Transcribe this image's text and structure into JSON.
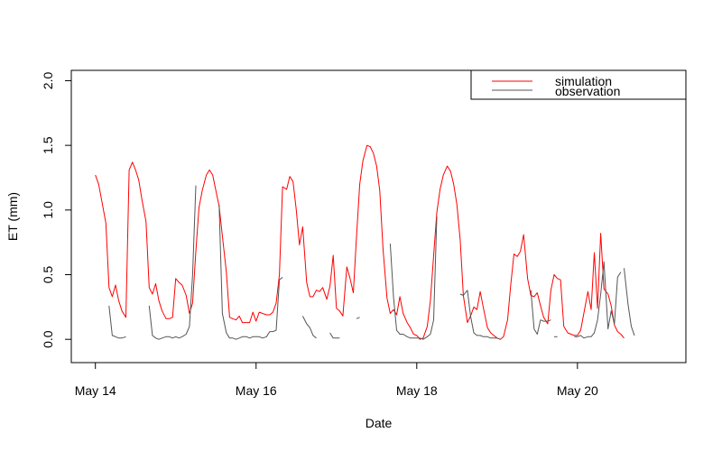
{
  "chart_data": {
    "type": "line",
    "title": "",
    "xlabel": "Date",
    "ylabel": "ET (mm)",
    "x_tick_labels": [
      "May 14",
      "May 16",
      "May 18",
      "May 20"
    ],
    "x_ticks": [
      14,
      16,
      18,
      20
    ],
    "y_ticks": [
      0.0,
      0.5,
      1.0,
      1.5,
      2.0
    ],
    "y_tick_labels": [
      "0.0",
      "0.5",
      "1.0",
      "1.5",
      "2.0"
    ],
    "xlim": [
      13.7,
      21.35
    ],
    "ylim": [
      -0.18,
      2.08
    ],
    "grid": false,
    "legend_position": "top-right",
    "colors": {
      "simulation": "#ff0000",
      "observation": "#555555"
    },
    "series": [
      {
        "name": "simulation",
        "points": [
          [
            14.0,
            1.27
          ],
          [
            14.04,
            1.2
          ],
          [
            14.08,
            1.07
          ],
          [
            14.13,
            0.9
          ],
          [
            14.17,
            0.4
          ],
          [
            14.21,
            0.33
          ],
          [
            14.25,
            0.42
          ],
          [
            14.29,
            0.3
          ],
          [
            14.33,
            0.22
          ],
          [
            14.38,
            0.17
          ],
          [
            14.42,
            1.31
          ],
          [
            14.46,
            1.37
          ],
          [
            14.5,
            1.31
          ],
          [
            14.54,
            1.23
          ],
          [
            14.58,
            1.08
          ],
          [
            14.63,
            0.91
          ],
          [
            14.67,
            0.4
          ],
          [
            14.71,
            0.35
          ],
          [
            14.75,
            0.43
          ],
          [
            14.79,
            0.3
          ],
          [
            14.83,
            0.22
          ],
          [
            14.88,
            0.16
          ],
          [
            14.92,
            0.16
          ],
          [
            14.96,
            0.17
          ],
          [
            15.0,
            0.47
          ],
          [
            15.04,
            0.44
          ],
          [
            15.08,
            0.42
          ],
          [
            15.13,
            0.34
          ],
          [
            15.17,
            0.2
          ],
          [
            15.21,
            0.28
          ],
          [
            15.25,
            0.68
          ],
          [
            15.29,
            1.02
          ],
          [
            15.33,
            1.15
          ],
          [
            15.38,
            1.27
          ],
          [
            15.42,
            1.31
          ],
          [
            15.46,
            1.27
          ],
          [
            15.5,
            1.15
          ],
          [
            15.54,
            1.03
          ],
          [
            15.58,
            0.8
          ],
          [
            15.63,
            0.52
          ],
          [
            15.67,
            0.17
          ],
          [
            15.71,
            0.16
          ],
          [
            15.75,
            0.15
          ],
          [
            15.79,
            0.18
          ],
          [
            15.83,
            0.13
          ],
          [
            15.88,
            0.13
          ],
          [
            15.92,
            0.13
          ],
          [
            15.96,
            0.21
          ],
          [
            16.0,
            0.14
          ],
          [
            16.04,
            0.21
          ],
          [
            16.08,
            0.2
          ],
          [
            16.13,
            0.19
          ],
          [
            16.17,
            0.19
          ],
          [
            16.21,
            0.21
          ],
          [
            16.25,
            0.28
          ],
          [
            16.29,
            0.5
          ],
          [
            16.33,
            1.18
          ],
          [
            16.38,
            1.16
          ],
          [
            16.42,
            1.26
          ],
          [
            16.46,
            1.22
          ],
          [
            16.5,
            1.0
          ],
          [
            16.54,
            0.73
          ],
          [
            16.58,
            0.87
          ],
          [
            16.63,
            0.44
          ],
          [
            16.67,
            0.33
          ],
          [
            16.71,
            0.33
          ],
          [
            16.75,
            0.38
          ],
          [
            16.79,
            0.37
          ],
          [
            16.83,
            0.4
          ],
          [
            16.88,
            0.31
          ],
          [
            16.92,
            0.41
          ],
          [
            16.96,
            0.65
          ],
          [
            17.0,
            0.24
          ],
          [
            17.04,
            0.22
          ],
          [
            17.08,
            0.18
          ],
          [
            17.13,
            0.56
          ],
          [
            17.17,
            0.47
          ],
          [
            17.21,
            0.36
          ],
          [
            17.25,
            0.79
          ],
          [
            17.29,
            1.2
          ],
          [
            17.33,
            1.38
          ],
          [
            17.38,
            1.5
          ],
          [
            17.42,
            1.49
          ],
          [
            17.46,
            1.44
          ],
          [
            17.5,
            1.34
          ],
          [
            17.54,
            1.15
          ],
          [
            17.58,
            0.7
          ],
          [
            17.63,
            0.32
          ],
          [
            17.67,
            0.2
          ],
          [
            17.71,
            0.23
          ],
          [
            17.75,
            0.19
          ],
          [
            17.79,
            0.33
          ],
          [
            17.83,
            0.2
          ],
          [
            17.88,
            0.13
          ],
          [
            17.92,
            0.09
          ],
          [
            17.96,
            0.04
          ],
          [
            18.0,
            0.03
          ],
          [
            18.04,
            0.0
          ],
          [
            18.08,
            0.01
          ],
          [
            18.13,
            0.1
          ],
          [
            18.17,
            0.3
          ],
          [
            18.21,
            0.65
          ],
          [
            18.25,
            0.98
          ],
          [
            18.29,
            1.16
          ],
          [
            18.33,
            1.27
          ],
          [
            18.38,
            1.34
          ],
          [
            18.42,
            1.3
          ],
          [
            18.46,
            1.2
          ],
          [
            18.5,
            1.04
          ],
          [
            18.54,
            0.77
          ],
          [
            18.58,
            0.34
          ],
          [
            18.63,
            0.13
          ],
          [
            18.67,
            0.18
          ],
          [
            18.71,
            0.25
          ],
          [
            18.75,
            0.23
          ],
          [
            18.79,
            0.37
          ],
          [
            18.83,
            0.24
          ],
          [
            18.88,
            0.09
          ],
          [
            18.92,
            0.05
          ],
          [
            18.96,
            0.03
          ],
          [
            19.0,
            0.01
          ],
          [
            19.04,
            0.0
          ],
          [
            19.08,
            0.02
          ],
          [
            19.13,
            0.15
          ],
          [
            19.17,
            0.42
          ],
          [
            19.21,
            0.66
          ],
          [
            19.25,
            0.64
          ],
          [
            19.29,
            0.68
          ],
          [
            19.33,
            0.81
          ],
          [
            19.38,
            0.47
          ],
          [
            19.42,
            0.34
          ],
          [
            19.46,
            0.33
          ],
          [
            19.5,
            0.36
          ],
          [
            19.54,
            0.26
          ],
          [
            19.58,
            0.17
          ],
          [
            19.63,
            0.12
          ],
          [
            19.67,
            0.38
          ],
          [
            19.71,
            0.5
          ],
          [
            19.75,
            0.47
          ],
          [
            19.79,
            0.46
          ],
          [
            19.83,
            0.1
          ],
          [
            19.88,
            0.05
          ],
          [
            19.92,
            0.04
          ],
          [
            19.96,
            0.03
          ],
          [
            20.0,
            0.03
          ],
          [
            20.04,
            0.07
          ],
          [
            20.08,
            0.2
          ],
          [
            20.13,
            0.37
          ],
          [
            20.17,
            0.23
          ],
          [
            20.21,
            0.67
          ],
          [
            20.25,
            0.24
          ],
          [
            20.29,
            0.82
          ],
          [
            20.33,
            0.39
          ],
          [
            20.38,
            0.35
          ],
          [
            20.42,
            0.26
          ],
          [
            20.46,
            0.11
          ],
          [
            20.5,
            0.06
          ],
          [
            20.54,
            0.04
          ],
          [
            20.58,
            0.01
          ]
        ]
      },
      {
        "name": "observation",
        "segments": [
          [
            [
              14.17,
              0.26
            ],
            [
              14.21,
              0.03
            ],
            [
              14.25,
              0.02
            ],
            [
              14.29,
              0.01
            ],
            [
              14.33,
              0.01
            ],
            [
              14.38,
              0.02
            ]
          ],
          [
            [
              14.67,
              0.26
            ],
            [
              14.71,
              0.03
            ],
            [
              14.75,
              0.01
            ],
            [
              14.79,
              0.0
            ],
            [
              14.83,
              0.01
            ],
            [
              14.88,
              0.02
            ],
            [
              14.92,
              0.02
            ],
            [
              14.96,
              0.01
            ],
            [
              15.0,
              0.02
            ],
            [
              15.04,
              0.01
            ],
            [
              15.08,
              0.02
            ],
            [
              15.13,
              0.04
            ],
            [
              15.17,
              0.1
            ],
            [
              15.21,
              0.5
            ],
            [
              15.25,
              1.19
            ]
          ],
          [
            [
              15.54,
              1.04
            ],
            [
              15.58,
              0.2
            ],
            [
              15.63,
              0.05
            ],
            [
              15.67,
              0.01
            ],
            [
              15.71,
              0.01
            ],
            [
              15.75,
              0.0
            ],
            [
              15.79,
              0.01
            ],
            [
              15.83,
              0.02
            ],
            [
              15.88,
              0.02
            ],
            [
              15.92,
              0.01
            ],
            [
              15.96,
              0.02
            ],
            [
              16.0,
              0.02
            ],
            [
              16.04,
              0.02
            ],
            [
              16.08,
              0.01
            ],
            [
              16.13,
              0.02
            ],
            [
              16.17,
              0.06
            ],
            [
              16.21,
              0.06
            ],
            [
              16.25,
              0.07
            ],
            [
              16.29,
              0.46
            ],
            [
              16.33,
              0.48
            ]
          ],
          [
            [
              16.58,
              0.18
            ],
            [
              16.63,
              0.12
            ],
            [
              16.67,
              0.09
            ],
            [
              16.71,
              0.03
            ],
            [
              16.75,
              0.01
            ]
          ],
          [
            [
              16.92,
              0.05
            ],
            [
              16.96,
              0.01
            ],
            [
              17.0,
              0.01
            ],
            [
              17.04,
              0.01
            ]
          ],
          [
            [
              17.25,
              0.16
            ],
            [
              17.29,
              0.17
            ]
          ],
          [
            [
              17.67,
              0.74
            ],
            [
              17.71,
              0.33
            ],
            [
              17.75,
              0.07
            ],
            [
              17.79,
              0.04
            ],
            [
              17.83,
              0.04
            ],
            [
              17.88,
              0.02
            ],
            [
              17.92,
              0.01
            ],
            [
              17.96,
              0.01
            ],
            [
              18.0,
              0.01
            ],
            [
              18.04,
              0.01
            ],
            [
              18.08,
              0.0
            ],
            [
              18.13,
              0.02
            ],
            [
              18.17,
              0.04
            ],
            [
              18.21,
              0.15
            ],
            [
              18.25,
              0.95
            ]
          ],
          [
            [
              18.54,
              0.35
            ],
            [
              18.58,
              0.34
            ],
            [
              18.63,
              0.38
            ]
          ],
          [
            [
              18.63,
              0.38
            ],
            [
              18.67,
              0.18
            ],
            [
              18.71,
              0.05
            ],
            [
              18.75,
              0.03
            ],
            [
              18.79,
              0.03
            ],
            [
              18.83,
              0.02
            ],
            [
              18.88,
              0.02
            ],
            [
              18.92,
              0.01
            ],
            [
              18.96,
              0.01
            ],
            [
              19.0,
              0.01
            ],
            [
              19.04,
              0.0
            ]
          ],
          [
            [
              19.42,
              0.38
            ],
            [
              19.46,
              0.08
            ],
            [
              19.5,
              0.04
            ],
            [
              19.54,
              0.15
            ],
            [
              19.58,
              0.14
            ],
            [
              19.63,
              0.14
            ],
            [
              19.67,
              0.15
            ]
          ],
          [
            [
              19.71,
              0.02
            ],
            [
              19.75,
              0.02
            ]
          ],
          [
            [
              19.96,
              0.02
            ],
            [
              20.0,
              0.02
            ],
            [
              20.04,
              0.03
            ],
            [
              20.08,
              0.01
            ],
            [
              20.13,
              0.02
            ],
            [
              20.17,
              0.02
            ],
            [
              20.21,
              0.05
            ],
            [
              20.25,
              0.15
            ],
            [
              20.29,
              0.35
            ],
            [
              20.33,
              0.6
            ],
            [
              20.38,
              0.08
            ],
            [
              20.42,
              0.22
            ],
            [
              20.46,
              0.12
            ],
            [
              20.5,
              0.48
            ],
            [
              20.54,
              0.52
            ]
          ],
          [
            [
              20.58,
              0.55
            ],
            [
              20.63,
              0.27
            ],
            [
              20.67,
              0.1
            ],
            [
              20.71,
              0.03
            ]
          ]
        ]
      }
    ]
  }
}
